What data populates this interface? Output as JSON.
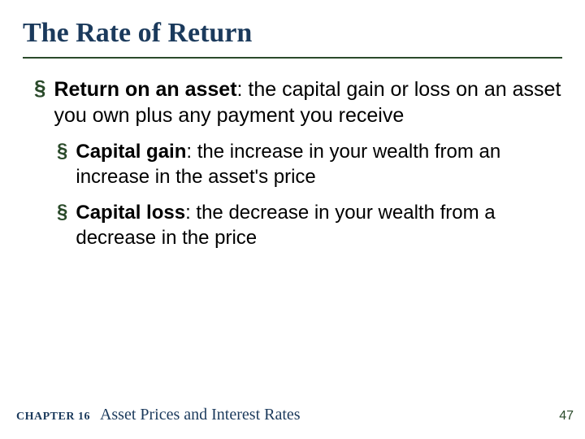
{
  "title": "The Rate of Return",
  "colors": {
    "title_color": "#1b3a5c",
    "bullet_color": "#2a4a2a",
    "body_text": "#000000",
    "footer_title": "#1b3a5c",
    "page_num": "#2a4a2a",
    "underline": "#2a4a2a",
    "background": "#ffffff"
  },
  "typography": {
    "title_fontsize": 34,
    "body_fontsize": 25,
    "sub_body_fontsize": 24,
    "chapter_label_fontsize": 14,
    "chapter_title_fontsize": 20,
    "page_num_fontsize": 16,
    "title_font": "Georgia serif",
    "body_font": "Arial sans-serif"
  },
  "bullets": {
    "main": {
      "term": "Return on an asset",
      "definition": ":  the capital gain or loss on an asset you own plus any payment you receive"
    },
    "sub1": {
      "term": "Capital gain",
      "definition": ":  the increase in your wealth from an increase in the asset's price"
    },
    "sub2": {
      "term": "Capital loss",
      "definition": ":  the decrease in your wealth from a decrease in the price"
    }
  },
  "footer": {
    "chapter_label": "CHAPTER 16",
    "chapter_title": "Asset Prices and Interest Rates",
    "page_number": "47"
  },
  "bullet_marker": "§"
}
